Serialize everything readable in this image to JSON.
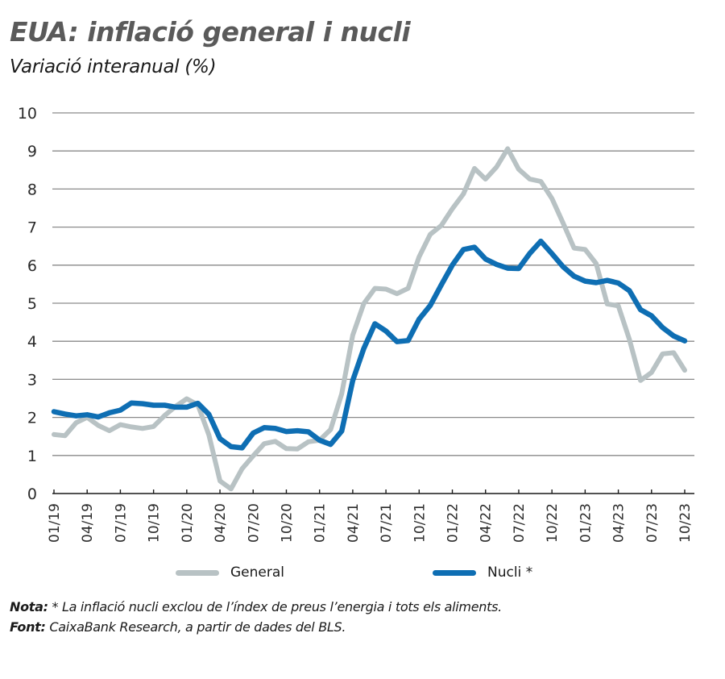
{
  "header": {
    "title": "EUA: inflació general i nucli",
    "subtitle": "Variació interanual (%)"
  },
  "legend": [
    {
      "label": "General",
      "color": "#b8c2c4"
    },
    {
      "label": "Nucli *",
      "color": "#0e6eb3"
    }
  ],
  "footnotes": {
    "note_label": "Nota:",
    "note_text": " * La inflació nucli exclou de l’índex de preus l’energia i tots els aliments.",
    "source_label": "Font:",
    "source_text": " CaixaBank Research, a partir de dades del BLS."
  },
  "chart_data": {
    "type": "line",
    "title": "EUA: inflació general i nucli",
    "subtitle": "Variació interanual (%)",
    "xlabel": "",
    "ylabel": "",
    "ylim": [
      0,
      10
    ],
    "yticks": [
      0,
      1,
      2,
      3,
      4,
      5,
      6,
      7,
      8,
      9,
      10
    ],
    "grid": true,
    "legend_position": "bottom",
    "xtick_labels": [
      "01/19",
      "04/19",
      "07/19",
      "10/19",
      "01/20",
      "04/20",
      "07/20",
      "10/20",
      "01/21",
      "04/21",
      "07/21",
      "10/21",
      "01/22",
      "04/22",
      "07/22",
      "10/22",
      "01/23",
      "04/23",
      "07/23",
      "10/23"
    ],
    "x": [
      "01/19",
      "02/19",
      "03/19",
      "04/19",
      "05/19",
      "06/19",
      "07/19",
      "08/19",
      "09/19",
      "10/19",
      "11/19",
      "12/19",
      "01/20",
      "02/20",
      "03/20",
      "04/20",
      "05/20",
      "06/20",
      "07/20",
      "08/20",
      "09/20",
      "10/20",
      "11/20",
      "12/20",
      "01/21",
      "02/21",
      "03/21",
      "04/21",
      "05/21",
      "06/21",
      "07/21",
      "08/21",
      "09/21",
      "10/21",
      "11/21",
      "12/21",
      "01/22",
      "02/22",
      "03/22",
      "04/22",
      "05/22",
      "06/22",
      "07/22",
      "08/22",
      "09/22",
      "10/22",
      "11/22",
      "12/22",
      "01/23",
      "02/23",
      "03/23",
      "04/23",
      "05/23",
      "06/23",
      "07/23",
      "08/23",
      "09/23",
      "10/23"
    ],
    "series": [
      {
        "name": "General",
        "color": "#b8c2c4",
        "values": [
          1.55,
          1.52,
          1.86,
          2.0,
          1.79,
          1.65,
          1.81,
          1.75,
          1.71,
          1.76,
          2.05,
          2.29,
          2.49,
          2.33,
          1.54,
          0.33,
          0.12,
          0.65,
          0.99,
          1.31,
          1.37,
          1.18,
          1.17,
          1.36,
          1.4,
          1.68,
          2.62,
          4.16,
          4.99,
          5.39,
          5.37,
          5.25,
          5.39,
          6.22,
          6.81,
          7.04,
          7.48,
          7.87,
          8.54,
          8.26,
          8.58,
          9.06,
          8.52,
          8.26,
          8.2,
          7.75,
          7.11,
          6.45,
          6.41,
          6.04,
          4.98,
          4.93,
          4.05,
          2.97,
          3.18,
          3.67,
          3.7,
          3.24
        ]
      },
      {
        "name": "Nucli *",
        "color": "#0e6eb3",
        "values": [
          2.15,
          2.09,
          2.04,
          2.07,
          2.01,
          2.12,
          2.19,
          2.38,
          2.36,
          2.32,
          2.32,
          2.27,
          2.27,
          2.37,
          2.08,
          1.44,
          1.23,
          1.2,
          1.59,
          1.73,
          1.71,
          1.63,
          1.65,
          1.62,
          1.4,
          1.29,
          1.64,
          2.97,
          3.81,
          4.46,
          4.27,
          3.99,
          4.02,
          4.58,
          4.94,
          5.48,
          6.0,
          6.41,
          6.47,
          6.16,
          6.02,
          5.92,
          5.91,
          6.31,
          6.63,
          6.3,
          5.96,
          5.71,
          5.58,
          5.54,
          5.6,
          5.53,
          5.33,
          4.83,
          4.67,
          4.36,
          4.14,
          4.01
        ]
      }
    ]
  }
}
